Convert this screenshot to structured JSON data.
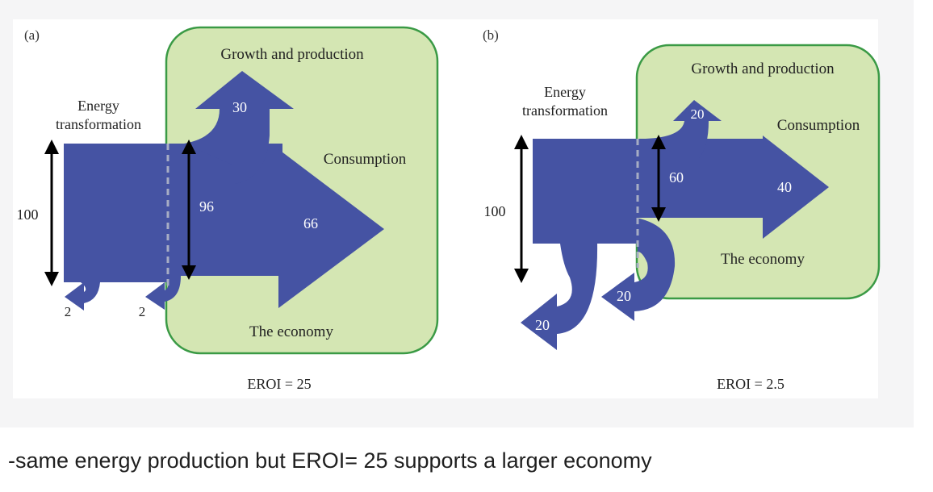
{
  "colors": {
    "flow": "#4553a3",
    "economy_fill": "#d4e6b3",
    "economy_border": "#3a9a45",
    "dash": "#a7adc4",
    "panel_bg": "#f5f5f6"
  },
  "panel_a": {
    "label": "(a)",
    "energy_label_line1": "Energy",
    "energy_label_line2": "transformation",
    "growth_label": "Growth and production",
    "consumption_label": "Consumption",
    "economy_label": "The economy",
    "input_value": "100",
    "net_value": "96",
    "growth_value": "30",
    "consumption_value": "66",
    "loss1_value": "2",
    "loss2_value": "2",
    "eroi": "EROI = 25"
  },
  "panel_b": {
    "label": "(b)",
    "energy_label_line1": "Energy",
    "energy_label_line2": "transformation",
    "growth_label": "Growth and production",
    "consumption_label": "Consumption",
    "economy_label": "The economy",
    "input_value": "100",
    "net_value": "60",
    "growth_value": "20",
    "consumption_value": "40",
    "loss1_value": "20",
    "loss2_value": "20",
    "eroi": "EROI = 2.5"
  },
  "caption": "-same energy production but EROI= 25 supports a larger economy"
}
